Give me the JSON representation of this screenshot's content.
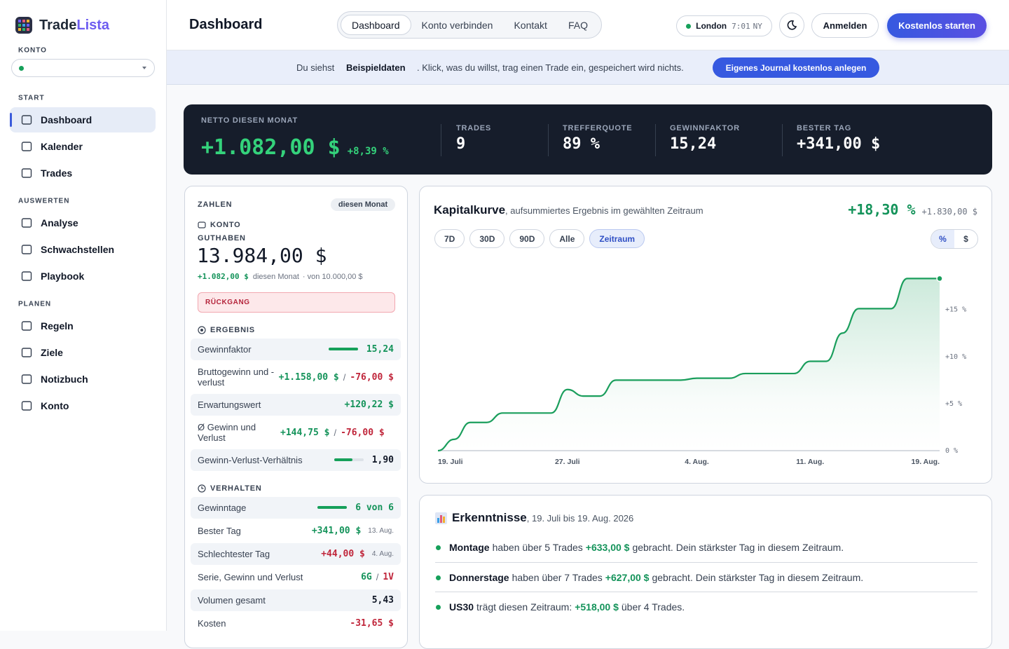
{
  "brand": {
    "name1": "Trade",
    "name2": "Lista"
  },
  "sidebar": {
    "account_label": "KONTO",
    "sections": [
      {
        "title": "START",
        "items": [
          "Dashboard",
          "Kalender",
          "Trades"
        ]
      },
      {
        "title": "AUSWERTEN",
        "items": [
          "Analyse",
          "Schwachstellen",
          "Playbook"
        ]
      },
      {
        "title": "PLANEN",
        "items": [
          "Regeln",
          "Ziele",
          "Notizbuch",
          "Konto"
        ]
      }
    ]
  },
  "header": {
    "title": "Dashboard",
    "tabs": [
      "Dashboard",
      "Konto verbinden",
      "Kontakt",
      "FAQ"
    ],
    "clock": {
      "city": "London",
      "time": "7:01",
      "zone": "NY"
    },
    "login": "Anmelden",
    "cta": "Kostenlos starten"
  },
  "banner": {
    "pre": "Du siehst",
    "bold": "Beispieldaten",
    "post": ". Klick, was du willst, trag einen Trade ein, gespeichert wird nichts.",
    "button": "Eigenes Journal kostenlos anlegen"
  },
  "summary": {
    "net_label": "NETTO DIESEN MONAT",
    "net": "+1.082,00 $",
    "net_pct": "+8,39 %",
    "stats": [
      {
        "label": "TRADES",
        "value": "9"
      },
      {
        "label": "TREFFERQUOTE",
        "value": "89 %"
      },
      {
        "label": "GEWINNFAKTOR",
        "value": "15,24"
      },
      {
        "label": "BESTER TAG",
        "value": "+341,00 $"
      }
    ]
  },
  "numbers": {
    "title": "ZAHLEN",
    "badge": "diesen Monat",
    "account": {
      "heading": "KONTO",
      "label": "GUTHABEN",
      "balance": "13.984,00 $",
      "change": "+1.082,00 $",
      "change_note": "diesen Monat",
      "from": "· von 10.000,00 $",
      "drawdown": "RÜCKGANG"
    },
    "result": {
      "heading": "ERGEBNIS",
      "rows": [
        {
          "label": "Gewinnfaktor",
          "value": "15,24",
          "color": "#14935a"
        },
        {
          "label": "Bruttogewinn und -verlust",
          "value": "+1.158,00 $",
          "sep": "/",
          "value2": "-76,00 $",
          "color": "#14935a",
          "color2": "#c0263b"
        },
        {
          "label": "Erwartungswert",
          "value": "+120,22 $",
          "color": "#14935a"
        },
        {
          "label": "Ø Gewinn und Verlust",
          "value": "+144,75 $",
          "sep": "/",
          "value2": "-76,00 $",
          "color": "#14935a",
          "color2": "#c0263b"
        },
        {
          "label": "Gewinn-Verlust-Verhältnis",
          "value": "1,90",
          "color": "#111827"
        }
      ]
    },
    "behavior": {
      "heading": "VERHALTEN",
      "rows": [
        {
          "label": "Gewinntage",
          "value": "6 von 6",
          "color": "#14935a"
        },
        {
          "label": "Bester Tag",
          "value": "+341,00 $",
          "note": "13. Aug.",
          "color": "#14935a"
        },
        {
          "label": "Schlechtester Tag",
          "value": "+44,00 $",
          "note": "4. Aug.",
          "color": "#c0263b"
        },
        {
          "label": "Serie, Gewinn und Verlust",
          "value": "6G",
          "sep": "/",
          "value2": "1V",
          "color": "#14935a",
          "color2": "#c0263b"
        },
        {
          "label": "Volumen gesamt",
          "value": "5,43",
          "color": "#111827"
        },
        {
          "label": "Kosten",
          "value": "-31,65 $",
          "color": "#c0263b"
        }
      ]
    }
  },
  "chart_data": {
    "type": "line",
    "title": "Kapitalkurve",
    "subtitle": ", aufsummiertes Ergebnis im gewählten Zeitraum",
    "total_pct": "+18,30 %",
    "total_abs": "+1.830,00 $",
    "ranges": [
      "7D",
      "30D",
      "90D",
      "Alle",
      "Zeitraum"
    ],
    "active_range": 4,
    "units": [
      "%",
      "$"
    ],
    "active_unit": 0,
    "categories": [
      "19. Juli",
      null,
      null,
      null,
      null,
      null,
      null,
      null,
      "27. Juli",
      null,
      null,
      null,
      null,
      null,
      null,
      null,
      "4. Aug.",
      null,
      null,
      null,
      null,
      null,
      null,
      "11. Aug.",
      null,
      null,
      null,
      null,
      null,
      null,
      null,
      "19. Aug."
    ],
    "values": [
      0,
      1.2,
      3,
      3,
      4,
      4,
      4,
      4,
      6.5,
      5.8,
      5.8,
      7.5,
      7.5,
      7.5,
      7.5,
      7.5,
      7.7,
      7.7,
      7.7,
      8.2,
      8.2,
      8.2,
      8.2,
      9.5,
      9.5,
      12.5,
      15.1,
      15.1,
      15.1,
      18.3,
      18.3,
      18.3
    ],
    "color": "#1a9e5c",
    "ylim": [
      0,
      19
    ],
    "yticks": [
      {
        "value": 0,
        "label": "0 %"
      },
      {
        "value": 5,
        "label": "+5 %"
      },
      {
        "value": 10,
        "label": "+10 %"
      },
      {
        "value": 15,
        "label": "+15 %"
      }
    ],
    "grid": false
  },
  "insights": {
    "title": "Erkenntnisse",
    "period": ", 19. Juli bis 19. Aug. 2026",
    "items": [
      {
        "bold": "Montage",
        "text1": "haben über 5 Trades",
        "amount": "+633,00 $",
        "text2": "gebracht. Dein stärkster Tag in diesem Zeitraum."
      },
      {
        "bold": "Donnerstage",
        "text1": "haben über 7 Trades",
        "amount": "+627,00 $",
        "text2": "gebracht. Dein stärkster Tag in diesem Zeitraum."
      },
      {
        "bold": "US30",
        "text1": "trägt diesen Zeitraum:",
        "amount": "+518,00 $",
        "text2": "über 4 Trades."
      }
    ]
  }
}
